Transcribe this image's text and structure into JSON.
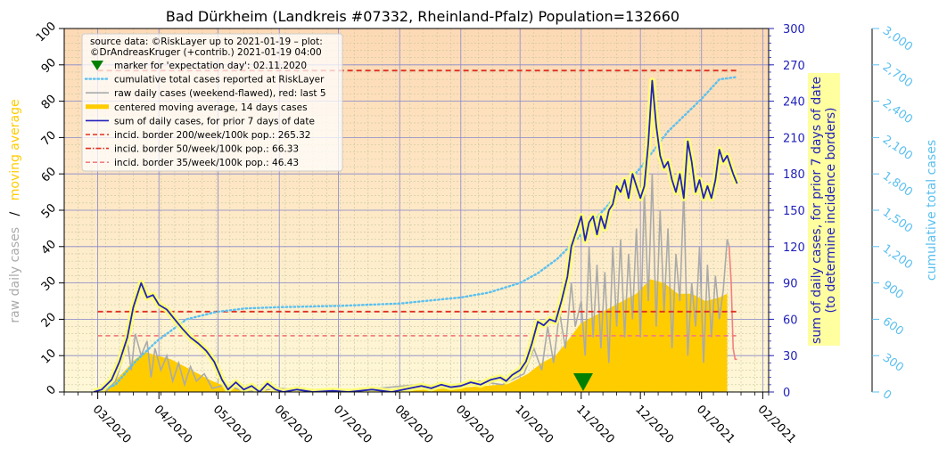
{
  "chart_data": {
    "type": "line",
    "title": "Bad Dürkheim (Landkreis #07332, Rheinland-Pfalz) Population=132660",
    "y_left_label_part1": "raw daily cases",
    "y_left_separator": "/",
    "y_left_label_part2": "moving average",
    "y_right1_label_line1": "sum of daily cases, for prior 7 days of date",
    "y_right1_label_line2": "(to determine incidence borders)",
    "y_right2_label": "cumulative total cases",
    "ylim_left": [
      0,
      100
    ],
    "ylim_right1": [
      0,
      300
    ],
    "ylim_right2": [
      0,
      3000
    ],
    "xlim": [
      "2020-02-13",
      "2021-02-04"
    ],
    "yticks_left": [
      "0",
      "10",
      "20",
      "30",
      "40",
      "50",
      "60",
      "70",
      "80",
      "90",
      "100"
    ],
    "yticks_right1": [
      "0",
      "30",
      "60",
      "90",
      "120",
      "150",
      "180",
      "210",
      "240",
      "270",
      "300"
    ],
    "yticks_right2": [
      "0",
      "300",
      "600",
      "900",
      "1,200",
      "1,500",
      "1,800",
      "2,100",
      "2,400",
      "2,700",
      "3,000"
    ],
    "xticks": [
      {
        "date": "2020-03-01",
        "label": "03/2020"
      },
      {
        "date": "2020-04-01",
        "label": "04/2020"
      },
      {
        "date": "2020-05-01",
        "label": "05/2020"
      },
      {
        "date": "2020-06-01",
        "label": "06/2020"
      },
      {
        "date": "2020-07-01",
        "label": "07/2020"
      },
      {
        "date": "2020-08-01",
        "label": "08/2020"
      },
      {
        "date": "2020-09-01",
        "label": "09/2020"
      },
      {
        "date": "2020-10-01",
        "label": "10/2020"
      },
      {
        "date": "2020-11-01",
        "label": "11/2020"
      },
      {
        "date": "2020-12-01",
        "label": "12/2020"
      },
      {
        "date": "2021-01-01",
        "label": "01/2021"
      },
      {
        "date": "2021-02-01",
        "label": "02/2021"
      }
    ],
    "legend": {
      "position": "upper-left",
      "source_line1": "source data: ©RiskLayer up to 2021-01-19 – plot:",
      "source_line2": "©DrAndreasKruger (+contrib.) 2021-01-19 04:00",
      "entries": [
        {
          "label": "marker for 'expectation day': 02.11.2020",
          "color": "#008000",
          "kind": "triangle"
        },
        {
          "label": "cumulative total cases reported at RiskLayer",
          "color": "#5bc0f0",
          "kind": "dotted"
        },
        {
          "label": "raw daily cases (weekend-flawed), red: last 5",
          "color": "#aaaaaa",
          "kind": "line"
        },
        {
          "label": "centered moving average, 14 days cases",
          "color": "#ffcc00",
          "kind": "thick"
        },
        {
          "label": "sum of daily cases, for prior 7 days of date",
          "color": "#2222bb",
          "kind": "line"
        },
        {
          "label": "incid. border 200/week/100k pop.: 265.32",
          "color": "#e03020",
          "kind": "dashed"
        },
        {
          "label": "incid. border 50/week/100k pop.: 66.33",
          "color": "#e03020",
          "kind": "dashdot"
        },
        {
          "label": "incid. border 35/week/100k pop.: 46.43",
          "color": "#f08080",
          "kind": "dashed"
        }
      ]
    },
    "expectation_day": "2020-11-02",
    "incidence_borders": [
      {
        "name": "200/week/100k",
        "value": 265.32,
        "axis": "right1",
        "color": "#e03020"
      },
      {
        "name": "50/week/100k",
        "value": 66.33,
        "axis": "right1",
        "color": "#e03020"
      },
      {
        "name": "35/week/100k",
        "value": 46.43,
        "axis": "right1",
        "color": "#f08080"
      }
    ],
    "borders_x_range": [
      "2020-03-01",
      "2021-01-19"
    ],
    "series": [
      {
        "name": "sum of daily cases, for prior 7 days of date",
        "axis": "right1",
        "color": "#2222bb",
        "points": [
          [
            "2020-02-28",
            0
          ],
          [
            "2020-03-03",
            2
          ],
          [
            "2020-03-08",
            10
          ],
          [
            "2020-03-12",
            25
          ],
          [
            "2020-03-16",
            45
          ],
          [
            "2020-03-19",
            70
          ],
          [
            "2020-03-23",
            90
          ],
          [
            "2020-03-26",
            78
          ],
          [
            "2020-03-29",
            80
          ],
          [
            "2020-04-01",
            72
          ],
          [
            "2020-04-05",
            68
          ],
          [
            "2020-04-09",
            60
          ],
          [
            "2020-04-13",
            52
          ],
          [
            "2020-04-17",
            45
          ],
          [
            "2020-04-21",
            40
          ],
          [
            "2020-04-25",
            34
          ],
          [
            "2020-04-29",
            25
          ],
          [
            "2020-05-03",
            10
          ],
          [
            "2020-05-06",
            2
          ],
          [
            "2020-05-10",
            8
          ],
          [
            "2020-05-14",
            2
          ],
          [
            "2020-05-18",
            5
          ],
          [
            "2020-05-22",
            0
          ],
          [
            "2020-05-26",
            7
          ],
          [
            "2020-05-30",
            2
          ],
          [
            "2020-06-03",
            0
          ],
          [
            "2020-06-10",
            2
          ],
          [
            "2020-06-18",
            0
          ],
          [
            "2020-06-28",
            1
          ],
          [
            "2020-07-06",
            0
          ],
          [
            "2020-07-18",
            2
          ],
          [
            "2020-07-28",
            0
          ],
          [
            "2020-08-06",
            3
          ],
          [
            "2020-08-12",
            5
          ],
          [
            "2020-08-17",
            3
          ],
          [
            "2020-08-22",
            6
          ],
          [
            "2020-08-27",
            4
          ],
          [
            "2020-09-01",
            5
          ],
          [
            "2020-09-06",
            8
          ],
          [
            "2020-09-11",
            6
          ],
          [
            "2020-09-16",
            10
          ],
          [
            "2020-09-21",
            12
          ],
          [
            "2020-09-24",
            9
          ],
          [
            "2020-09-27",
            14
          ],
          [
            "2020-10-01",
            18
          ],
          [
            "2020-10-04",
            25
          ],
          [
            "2020-10-07",
            40
          ],
          [
            "2020-10-10",
            58
          ],
          [
            "2020-10-13",
            55
          ],
          [
            "2020-10-16",
            60
          ],
          [
            "2020-10-19",
            58
          ],
          [
            "2020-10-22",
            75
          ],
          [
            "2020-10-25",
            95
          ],
          [
            "2020-10-27",
            120
          ],
          [
            "2020-10-30",
            135
          ],
          [
            "2020-11-01",
            145
          ],
          [
            "2020-11-03",
            125
          ],
          [
            "2020-11-05",
            140
          ],
          [
            "2020-11-07",
            145
          ],
          [
            "2020-11-09",
            130
          ],
          [
            "2020-11-11",
            145
          ],
          [
            "2020-11-13",
            135
          ],
          [
            "2020-11-15",
            150
          ],
          [
            "2020-11-17",
            155
          ],
          [
            "2020-11-19",
            170
          ],
          [
            "2020-11-21",
            165
          ],
          [
            "2020-11-23",
            175
          ],
          [
            "2020-11-25",
            160
          ],
          [
            "2020-11-27",
            180
          ],
          [
            "2020-11-29",
            170
          ],
          [
            "2020-12-01",
            160
          ],
          [
            "2020-12-03",
            170
          ],
          [
            "2020-12-05",
            205
          ],
          [
            "2020-12-07",
            257
          ],
          [
            "2020-12-09",
            220
          ],
          [
            "2020-12-11",
            195
          ],
          [
            "2020-12-13",
            185
          ],
          [
            "2020-12-15",
            190
          ],
          [
            "2020-12-17",
            175
          ],
          [
            "2020-12-19",
            165
          ],
          [
            "2020-12-21",
            180
          ],
          [
            "2020-12-23",
            160
          ],
          [
            "2020-12-25",
            207
          ],
          [
            "2020-12-27",
            190
          ],
          [
            "2020-12-29",
            165
          ],
          [
            "2020-12-31",
            175
          ],
          [
            "2021-01-02",
            160
          ],
          [
            "2021-01-04",
            170
          ],
          [
            "2021-01-06",
            160
          ],
          [
            "2021-01-08",
            175
          ],
          [
            "2021-01-10",
            200
          ],
          [
            "2021-01-12",
            190
          ],
          [
            "2021-01-14",
            195
          ],
          [
            "2021-01-17",
            180
          ],
          [
            "2021-01-19",
            172
          ]
        ]
      },
      {
        "name": "cumulative total cases reported at RiskLayer",
        "axis": "right2",
        "color": "#5bc0f0",
        "points": [
          [
            "2020-03-01",
            0
          ],
          [
            "2020-03-10",
            60
          ],
          [
            "2020-03-20",
            250
          ],
          [
            "2020-03-31",
            420
          ],
          [
            "2020-04-15",
            600
          ],
          [
            "2020-04-30",
            660
          ],
          [
            "2020-05-15",
            690
          ],
          [
            "2020-06-01",
            700
          ],
          [
            "2020-07-01",
            710
          ],
          [
            "2020-08-01",
            730
          ],
          [
            "2020-09-01",
            780
          ],
          [
            "2020-09-15",
            820
          ],
          [
            "2020-10-01",
            900
          ],
          [
            "2020-10-10",
            980
          ],
          [
            "2020-10-20",
            1100
          ],
          [
            "2020-11-01",
            1300
          ],
          [
            "2020-11-15",
            1550
          ],
          [
            "2020-12-01",
            1850
          ],
          [
            "2020-12-15",
            2150
          ],
          [
            "2021-01-01",
            2420
          ],
          [
            "2021-01-10",
            2580
          ],
          [
            "2021-01-19",
            2600
          ]
        ]
      },
      {
        "name": "raw daily cases (weekend-flawed), red: last 5",
        "axis": "left",
        "color": "#aaaaaa",
        "last5_color": "#f08080",
        "points": [
          [
            "2020-03-05",
            0
          ],
          [
            "2020-03-10",
            3
          ],
          [
            "2020-03-13",
            8
          ],
          [
            "2020-03-16",
            14
          ],
          [
            "2020-03-18",
            6
          ],
          [
            "2020-03-20",
            16
          ],
          [
            "2020-03-23",
            10
          ],
          [
            "2020-03-26",
            14
          ],
          [
            "2020-03-28",
            4
          ],
          [
            "2020-03-30",
            12
          ],
          [
            "2020-04-02",
            6
          ],
          [
            "2020-04-05",
            10
          ],
          [
            "2020-04-08",
            3
          ],
          [
            "2020-04-11",
            8
          ],
          [
            "2020-04-14",
            2
          ],
          [
            "2020-04-17",
            7
          ],
          [
            "2020-04-20",
            3
          ],
          [
            "2020-04-24",
            5
          ],
          [
            "2020-04-28",
            1
          ],
          [
            "2020-05-05",
            2
          ],
          [
            "2020-05-15",
            0
          ],
          [
            "2020-06-01",
            1
          ],
          [
            "2020-07-01",
            0
          ],
          [
            "2020-08-10",
            2
          ],
          [
            "2020-08-25",
            1
          ],
          [
            "2020-09-10",
            3
          ],
          [
            "2020-09-22",
            2
          ],
          [
            "2020-10-03",
            5
          ],
          [
            "2020-10-08",
            12
          ],
          [
            "2020-10-12",
            6
          ],
          [
            "2020-10-15",
            18
          ],
          [
            "2020-10-18",
            8
          ],
          [
            "2020-10-21",
            22
          ],
          [
            "2020-10-24",
            12
          ],
          [
            "2020-10-27",
            30
          ],
          [
            "2020-10-29",
            18
          ],
          [
            "2020-11-01",
            25
          ],
          [
            "2020-11-03",
            10
          ],
          [
            "2020-11-05",
            40
          ],
          [
            "2020-11-07",
            15
          ],
          [
            "2020-11-09",
            35
          ],
          [
            "2020-11-11",
            12
          ],
          [
            "2020-11-13",
            33
          ],
          [
            "2020-11-15",
            8
          ],
          [
            "2020-11-17",
            40
          ],
          [
            "2020-11-19",
            18
          ],
          [
            "2020-11-21",
            42
          ],
          [
            "2020-11-23",
            15
          ],
          [
            "2020-11-25",
            38
          ],
          [
            "2020-11-27",
            20
          ],
          [
            "2020-11-29",
            45
          ],
          [
            "2020-12-01",
            15
          ],
          [
            "2020-12-03",
            55
          ],
          [
            "2020-12-05",
            25
          ],
          [
            "2020-12-07",
            60
          ],
          [
            "2020-12-09",
            18
          ],
          [
            "2020-12-11",
            50
          ],
          [
            "2020-12-13",
            22
          ],
          [
            "2020-12-15",
            45
          ],
          [
            "2020-12-17",
            12
          ],
          [
            "2020-12-19",
            38
          ],
          [
            "2020-12-21",
            25
          ],
          [
            "2020-12-23",
            55
          ],
          [
            "2020-12-25",
            10
          ],
          [
            "2020-12-27",
            30
          ],
          [
            "2020-12-29",
            18
          ],
          [
            "2020-12-31",
            40
          ],
          [
            "2021-01-02",
            8
          ],
          [
            "2021-01-04",
            35
          ],
          [
            "2021-01-06",
            15
          ],
          [
            "2021-01-08",
            32
          ],
          [
            "2021-01-10",
            20
          ],
          [
            "2021-01-12",
            28
          ],
          [
            "2021-01-14",
            42
          ],
          [
            "2021-01-15",
            40
          ],
          [
            "2021-01-16",
            30
          ],
          [
            "2021-01-17",
            12
          ],
          [
            "2021-01-18",
            9
          ],
          [
            "2021-01-19",
            9
          ]
        ]
      },
      {
        "name": "centered moving average, 14 days cases",
        "axis": "left",
        "color": "#ffcc00",
        "kind": "filled-area",
        "points": [
          [
            "2020-03-01",
            0
          ],
          [
            "2020-03-08",
            2
          ],
          [
            "2020-03-15",
            6
          ],
          [
            "2020-03-20",
            9
          ],
          [
            "2020-03-25",
            11
          ],
          [
            "2020-03-31",
            10
          ],
          [
            "2020-04-07",
            9
          ],
          [
            "2020-04-14",
            7
          ],
          [
            "2020-04-21",
            5
          ],
          [
            "2020-04-28",
            3
          ],
          [
            "2020-05-05",
            1.5
          ],
          [
            "2020-05-15",
            0.5
          ],
          [
            "2020-06-01",
            0.2
          ],
          [
            "2020-07-01",
            0.1
          ],
          [
            "2020-08-01",
            0.3
          ],
          [
            "2020-08-20",
            0.8
          ],
          [
            "2020-09-10",
            1.5
          ],
          [
            "2020-09-25",
            2.2
          ],
          [
            "2020-10-05",
            5
          ],
          [
            "2020-10-12",
            8
          ],
          [
            "2020-10-19",
            10
          ],
          [
            "2020-10-25",
            14
          ],
          [
            "2020-11-01",
            19
          ],
          [
            "2020-11-08",
            21
          ],
          [
            "2020-11-15",
            23
          ],
          [
            "2020-11-22",
            25
          ],
          [
            "2020-11-29",
            27
          ],
          [
            "2020-12-06",
            31
          ],
          [
            "2020-12-13",
            30
          ],
          [
            "2020-12-20",
            27
          ],
          [
            "2020-12-27",
            27
          ],
          [
            "2021-01-03",
            25
          ],
          [
            "2021-01-10",
            26
          ],
          [
            "2021-01-14",
            27
          ]
        ]
      }
    ]
  }
}
